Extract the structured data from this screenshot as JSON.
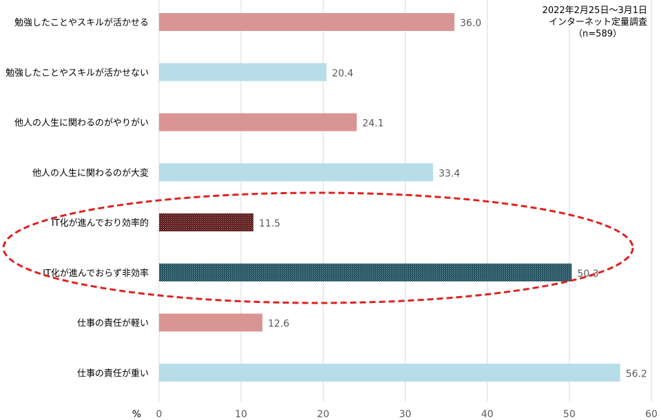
{
  "chart_data": {
    "type": "bar",
    "orientation": "horizontal",
    "categories": [
      "勉強したことやスキルが活かせる",
      "勉強したことやスキルが活かせない",
      "他人の人生に関わるのがやりがい",
      "他人の人生に関わるのが大変",
      "IT化が進んでおり効率的",
      "IT化が進んでおらず非効率",
      "仕事の責任が軽い",
      "仕事の責任が重い"
    ],
    "values": [
      36.0,
      20.4,
      24.1,
      33.4,
      11.5,
      50.3,
      12.6,
      56.2
    ],
    "value_labels": [
      "36.0",
      "20.4",
      "24.1",
      "33.4",
      "11.5",
      "50.3",
      "12.6",
      "56.2"
    ],
    "bar_styles": [
      "pink",
      "blue",
      "pink",
      "blue",
      "pink-pattern",
      "blue-pattern",
      "pink",
      "blue"
    ],
    "xlim": [
      0,
      60
    ],
    "xticks": [
      "0",
      "10",
      "20",
      "30",
      "40",
      "50",
      "60"
    ],
    "xunit": "%",
    "grid": "vertical",
    "highlight": {
      "style": "red dashed ellipse",
      "categories": [
        "IT化が進んでおり効率的",
        "IT化が進んでおらず非効率"
      ]
    },
    "annotation": [
      "2022年2月25日～3月1日",
      "インターネット定量調査",
      "（n=589）"
    ],
    "colors": {
      "pink": "#d99594",
      "blue": "#b7dde8",
      "pink_dark": "#4a1010",
      "blue_dark": "#0d3b4a",
      "highlight": "#e02020",
      "grid": "#d9d9d9"
    }
  }
}
